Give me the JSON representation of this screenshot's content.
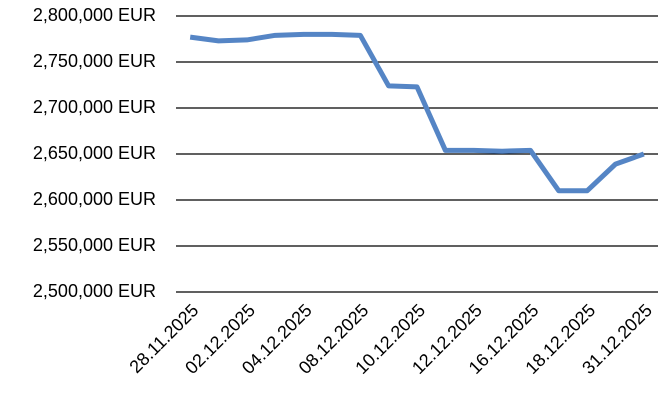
{
  "chart_data": {
    "type": "line",
    "categories": [
      "28.11.2025",
      null,
      "02.12.2025",
      null,
      "04.12.2025",
      null,
      "08.12.2025",
      null,
      "10.12.2025",
      null,
      "12.12.2025",
      null,
      "16.12.2025",
      null,
      "18.12.2025",
      null,
      "31.12.2025"
    ],
    "series": [
      {
        "color": "#5585c5",
        "values": [
          2777000,
          2773000,
          2774000,
          2779000,
          2780000,
          2780000,
          2779000,
          2724000,
          2723000,
          2654000,
          2654000,
          2653000,
          2654000,
          2610000,
          2610000,
          2639000,
          2650000
        ]
      }
    ],
    "ylim": [
      2500000,
      2800000
    ],
    "yticks": [
      {
        "value": 2500000,
        "label": "2,500,000 EUR"
      },
      {
        "value": 2550000,
        "label": "2,550,000 EUR"
      },
      {
        "value": 2600000,
        "label": "2,600,000 EUR"
      },
      {
        "value": 2650000,
        "label": "2,650,000 EUR"
      },
      {
        "value": 2700000,
        "label": "2,700,000 EUR"
      },
      {
        "value": 2750000,
        "label": "2,750,000 EUR"
      },
      {
        "value": 2800000,
        "label": "2,800,000 EUR"
      }
    ],
    "grid": true
  }
}
